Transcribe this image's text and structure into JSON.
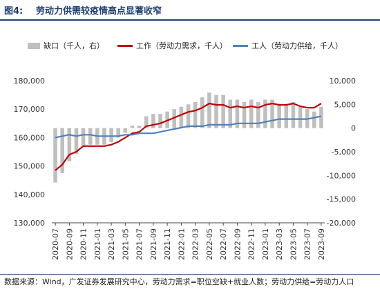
{
  "header": {
    "fig_label": "图4:",
    "fig_title": "劳动力供需较疫情高点显著收窄"
  },
  "legend": {
    "bar": "缺口（千人，右）",
    "red": "工作（劳动力需求，千人）",
    "blue": "工人（劳动力供给，千人）"
  },
  "colors": {
    "bar": "#bfbfbf",
    "demand": "#c00000",
    "supply": "#4f81bd",
    "title": "#1f3f73"
  },
  "source": "数据来源：Wind，广发证券发展研究中心，劳动力需求=职位空缺+就业人数；劳动力供给=劳动力人口",
  "chart_data": {
    "type": "bar+line",
    "x": [
      "2020-07",
      "2020-08",
      "2020-09",
      "2020-10",
      "2020-11",
      "2020-12",
      "2021-01",
      "2021-02",
      "2021-03",
      "2021-04",
      "2021-05",
      "2021-06",
      "2021-07",
      "2021-08",
      "2021-09",
      "2021-10",
      "2021-11",
      "2021-12",
      "2022-01",
      "2022-02",
      "2022-03",
      "2022-04",
      "2022-05",
      "2022-06",
      "2022-07",
      "2022-08",
      "2022-09",
      "2022-10",
      "2022-11",
      "2022-12",
      "2023-01",
      "2023-02",
      "2023-03",
      "2023-04",
      "2023-05",
      "2023-06",
      "2023-07",
      "2023-08",
      "2023-09"
    ],
    "xtick_labels": [
      "2020-07",
      "2020-09",
      "2020-11",
      "2021-01",
      "2021-03",
      "2021-05",
      "2021-07",
      "2021-09",
      "2021-11",
      "2022-01",
      "2022-03",
      "2022-05",
      "2022-07",
      "2022-09",
      "2022-11",
      "2023-01",
      "2023-03",
      "2023-05",
      "2023-07",
      "2023-09"
    ],
    "ylim_left": [
      130000,
      180000
    ],
    "yticks_left": [
      "130,000",
      "140,000",
      "150,000",
      "160,000",
      "170,000",
      "180,000"
    ],
    "ylim_right": [
      -20000,
      10000
    ],
    "yticks_right": [
      "-20,000",
      "-15,000",
      "-10,000",
      "-5,000",
      "0",
      "5,000",
      "10,000"
    ],
    "series": [
      {
        "name": "工作（劳动力需求，千人）",
        "axis": "left",
        "kind": "line",
        "values": [
          148500,
          150500,
          154000,
          155000,
          157000,
          157000,
          157000,
          157000,
          157500,
          158500,
          160000,
          161500,
          162000,
          164000,
          164500,
          165000,
          166000,
          167000,
          168000,
          169000,
          169500,
          170500,
          172000,
          171500,
          171500,
          170500,
          171000,
          170500,
          171000,
          170500,
          171500,
          172000,
          171500,
          171500,
          172000,
          171000,
          170500,
          170500,
          172000
        ]
      },
      {
        "name": "工人（劳动力供给，千人）",
        "axis": "left",
        "kind": "line",
        "values": [
          160000,
          160500,
          161000,
          160500,
          161000,
          161000,
          160500,
          160500,
          160500,
          160500,
          161000,
          161000,
          161500,
          161500,
          161500,
          162000,
          162500,
          163000,
          163500,
          164000,
          164000,
          164000,
          164500,
          164500,
          164500,
          164500,
          165000,
          165000,
          165000,
          165000,
          165500,
          166000,
          166500,
          166500,
          166500,
          166500,
          166500,
          167000,
          167500
        ]
      },
      {
        "name": "缺口（千人，右）",
        "axis": "right",
        "kind": "bar",
        "values": [
          -11500,
          -9500,
          -7000,
          -5500,
          -4000,
          -3500,
          -3500,
          -3500,
          -3000,
          -2000,
          -1000,
          500,
          500,
          2500,
          3000,
          3000,
          3500,
          4000,
          4500,
          5000,
          5500,
          6500,
          7500,
          7000,
          7000,
          6000,
          6000,
          5500,
          6000,
          5500,
          6000,
          6000,
          5000,
          5000,
          5500,
          4500,
          4000,
          3500,
          4500
        ]
      }
    ]
  }
}
